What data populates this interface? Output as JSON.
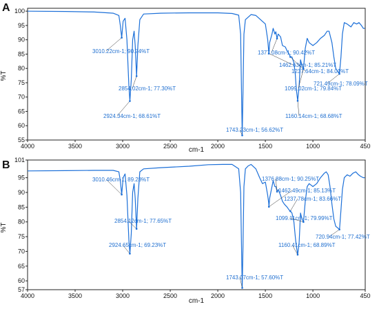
{
  "chart_data": [
    {
      "type": "line",
      "panel_label": "A",
      "xlabel": "cm-1",
      "ylabel": "%T",
      "xlim": [
        4000,
        450
      ],
      "ylim": [
        55,
        101
      ],
      "x_ticks": [
        "4000",
        "3500",
        "3000",
        "2500",
        "2000",
        "1500",
        "1000",
        "450"
      ],
      "y_ticks": [
        "100",
        "95",
        "90",
        "85",
        "80",
        "75",
        "70",
        "65",
        "60",
        "55"
      ],
      "line_color": "#1b6fd8",
      "series": [
        {
          "points": [
            [
              4000,
              100
            ],
            [
              3600,
              99.9
            ],
            [
              3300,
              99.7
            ],
            [
              3100,
              99.3
            ],
            [
              3040,
              98.5
            ],
            [
              3025,
              95
            ],
            [
              3010,
              90.74
            ],
            [
              2995,
              96.5
            ],
            [
              2975,
              97.5
            ],
            [
              2955,
              90
            ],
            [
              2935,
              74
            ],
            [
              2924,
              68.61
            ],
            [
              2910,
              76
            ],
            [
              2895,
              90
            ],
            [
              2880,
              93
            ],
            [
              2868,
              88
            ],
            [
              2854,
              77.3
            ],
            [
              2840,
              88
            ],
            [
              2820,
              97
            ],
            [
              2780,
              99
            ],
            [
              2600,
              99.3
            ],
            [
              2300,
              99.4
            ],
            [
              2000,
              99.4
            ],
            [
              1850,
              99.2
            ],
            [
              1780,
              98.6
            ],
            [
              1760,
              92
            ],
            [
              1750,
              70
            ],
            [
              1743,
              56.62
            ],
            [
              1736,
              70
            ],
            [
              1725,
              92
            ],
            [
              1710,
              97
            ],
            [
              1650,
              98.8
            ],
            [
              1600,
              98.5
            ],
            [
              1550,
              97
            ],
            [
              1500,
              95.5
            ],
            [
              1475,
              90
            ],
            [
              1465,
              86
            ],
            [
              1462,
              85.21
            ],
            [
              1455,
              89
            ],
            [
              1430,
              92
            ],
            [
              1418,
              94
            ],
            [
              1400,
              92
            ],
            [
              1390,
              92.8
            ],
            [
              1377,
              90.42
            ],
            [
              1365,
              92
            ],
            [
              1340,
              91
            ],
            [
              1320,
              88
            ],
            [
              1290,
              87.5
            ],
            [
              1270,
              86
            ],
            [
              1250,
              85
            ],
            [
              1237,
              84.01
            ],
            [
              1220,
              84
            ],
            [
              1200,
              82
            ],
            [
              1185,
              78
            ],
            [
              1175,
              73
            ],
            [
              1160,
              68.68
            ],
            [
              1145,
              74
            ],
            [
              1130,
              83
            ],
            [
              1115,
              81
            ],
            [
              1099,
              79.84
            ],
            [
              1080,
              87
            ],
            [
              1060,
              90.5
            ],
            [
              1040,
              89
            ],
            [
              1000,
              88
            ],
            [
              960,
              89
            ],
            [
              920,
              90.5
            ],
            [
              880,
              91.5
            ],
            [
              850,
              93
            ],
            [
              830,
              93
            ],
            [
              800,
              89
            ],
            [
              780,
              84
            ],
            [
              760,
              80
            ],
            [
              740,
              79
            ],
            [
              721,
              78.09
            ],
            [
              705,
              84
            ],
            [
              690,
              92
            ],
            [
              670,
              96
            ],
            [
              640,
              95.5
            ],
            [
              620,
              95
            ],
            [
              600,
              94.5
            ],
            [
              570,
              96
            ],
            [
              540,
              95.5
            ],
            [
              515,
              96
            ],
            [
              490,
              95
            ],
            [
              470,
              94
            ],
            [
              455,
              94
            ]
          ]
        }
      ],
      "annotations": [
        {
          "x": 3010.22,
          "y": 90.74,
          "text": "3010.22cm-1; 90.74%T"
        },
        {
          "x": 2854.02,
          "y": 77.3,
          "text": "2854.02cm-1; 77.30%T"
        },
        {
          "x": 2924.34,
          "y": 68.61,
          "text": "2924.34cm-1; 68.61%T"
        },
        {
          "x": 1743.23,
          "y": 56.62,
          "text": "1743.23cm-1; 56.62%T"
        },
        {
          "x": 1377.08,
          "y": 90.42,
          "text": "1377.08cm-1; 90.42%T"
        },
        {
          "x": 1462.63,
          "y": 85.21,
          "text": "1462.63cm-1; 85.21%T"
        },
        {
          "x": 1237.64,
          "y": 84.01,
          "text": "1237.64cm-1; 84.01%T"
        },
        {
          "x": 1099.02,
          "y": 79.84,
          "text": "1099.02cm-1; 79.84%T"
        },
        {
          "x": 1160.14,
          "y": 68.68,
          "text": "1160.14cm-1; 68.68%T"
        },
        {
          "x": 721.49,
          "y": 78.09,
          "text": "721.49cm-1; 78.09%T"
        }
      ]
    },
    {
      "type": "line",
      "panel_label": "B",
      "xlabel": "cm-1",
      "ylabel": "%T",
      "xlim": [
        4000,
        450
      ],
      "ylim": [
        57,
        101
      ],
      "x_ticks": [
        "4000",
        "3500",
        "3000",
        "2500",
        "2000",
        "1500",
        "1000",
        "450"
      ],
      "y_ticks": [
        "101",
        "95",
        "90",
        "85",
        "80",
        "75",
        "70",
        "65",
        "60",
        "57"
      ],
      "line_color": "#1b6fd8",
      "series": [
        {
          "points": [
            [
              4000,
              97.3
            ],
            [
              3600,
              97.4
            ],
            [
              3300,
              97.5
            ],
            [
              3100,
              97.5
            ],
            [
              3040,
              97
            ],
            [
              3025,
              94
            ],
            [
              3010,
              89.28
            ],
            [
              2995,
              95
            ],
            [
              2975,
              96.3
            ],
            [
              2955,
              89
            ],
            [
              2935,
              74
            ],
            [
              2924,
              69.23
            ],
            [
              2910,
              76
            ],
            [
              2895,
              90
            ],
            [
              2880,
              93
            ],
            [
              2868,
              88
            ],
            [
              2854,
              77.65
            ],
            [
              2840,
              88
            ],
            [
              2820,
              97
            ],
            [
              2780,
              98
            ],
            [
              2600,
              98.4
            ],
            [
              2300,
              98.9
            ],
            [
              2100,
              99.4
            ],
            [
              1950,
              99.5
            ],
            [
              1850,
              99.5
            ],
            [
              1780,
              98
            ],
            [
              1760,
              90
            ],
            [
              1750,
              70
            ],
            [
              1743,
              57.6
            ],
            [
              1736,
              70
            ],
            [
              1725,
              92
            ],
            [
              1710,
              98
            ],
            [
              1680,
              99
            ],
            [
              1650,
              99.5
            ],
            [
              1600,
              98
            ],
            [
              1560,
              95
            ],
            [
              1530,
              93
            ],
            [
              1500,
              93.5
            ],
            [
              1475,
              89
            ],
            [
              1465,
              86.5
            ],
            [
              1462,
              85.13
            ],
            [
              1455,
              88
            ],
            [
              1430,
              92
            ],
            [
              1418,
              94
            ],
            [
              1400,
              92
            ],
            [
              1390,
              92
            ],
            [
              1376,
              90.25
            ],
            [
              1365,
              91
            ],
            [
              1340,
              89
            ],
            [
              1320,
              87
            ],
            [
              1300,
              86
            ],
            [
              1270,
              85
            ],
            [
              1250,
              84
            ],
            [
              1237,
              83.66
            ],
            [
              1220,
              83
            ],
            [
              1200,
              80
            ],
            [
              1185,
              75
            ],
            [
              1175,
              72
            ],
            [
              1160,
              68.89
            ],
            [
              1145,
              73
            ],
            [
              1130,
              83
            ],
            [
              1115,
              81
            ],
            [
              1099,
              79.99
            ],
            [
              1080,
              87
            ],
            [
              1060,
              92
            ],
            [
              1040,
              93
            ],
            [
              1000,
              92
            ],
            [
              960,
              93
            ],
            [
              920,
              95
            ],
            [
              880,
              96.5
            ],
            [
              860,
              97
            ],
            [
              840,
              96
            ],
            [
              820,
              92
            ],
            [
              800,
              86
            ],
            [
              780,
              81
            ],
            [
              760,
              78.5
            ],
            [
              740,
              78
            ],
            [
              720,
              77.42
            ],
            [
              705,
              84
            ],
            [
              690,
              91
            ],
            [
              670,
              95
            ],
            [
              640,
              96
            ],
            [
              610,
              95.5
            ],
            [
              580,
              96.5
            ],
            [
              550,
              97
            ],
            [
              520,
              96
            ],
            [
              500,
              95.5
            ],
            [
              470,
              95
            ],
            [
              455,
              95
            ]
          ]
        }
      ],
      "annotations": [
        {
          "x": 3010.46,
          "y": 89.28,
          "text": "3010.46cm-1; 89.28%T"
        },
        {
          "x": 2854.12,
          "y": 77.65,
          "text": "2854.12cm-1; 77.65%T"
        },
        {
          "x": 2924.65,
          "y": 69.23,
          "text": "2924.65cm-1; 69.23%T"
        },
        {
          "x": 1743.07,
          "y": 57.6,
          "text": "1743.07cm-1; 57.60%T"
        },
        {
          "x": 1376.88,
          "y": 90.25,
          "text": "1376.88cm-1; 90.25%T"
        },
        {
          "x": 1462.49,
          "y": 85.13,
          "text": "1462.49cm-1; 85.13%T"
        },
        {
          "x": 1237.78,
          "y": 83.66,
          "text": "1237.78cm-1; 83.66%T"
        },
        {
          "x": 1099.11,
          "y": 79.99,
          "text": "1099.11cm-1; 79.99%T"
        },
        {
          "x": 1160.41,
          "y": 68.89,
          "text": "1160.41cm-1; 68.89%T"
        },
        {
          "x": 720.94,
          "y": 77.42,
          "text": "720.94cm-1; 77.42%T"
        }
      ]
    }
  ]
}
